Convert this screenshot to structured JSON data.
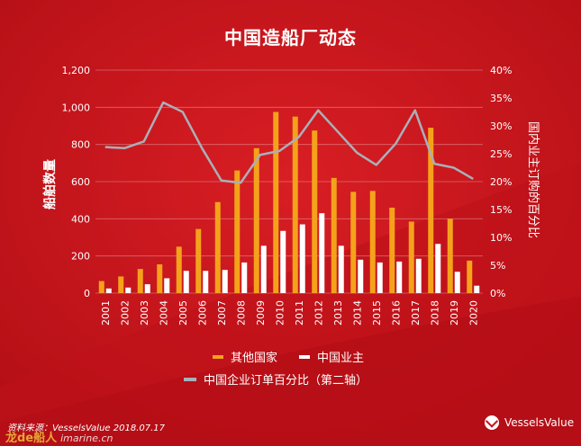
{
  "colors": {
    "background": "#c8141c",
    "bar_other": "#f5a21b",
    "bar_china": "#ffffff",
    "line": "#a9b0b8",
    "text": "#ffffff"
  },
  "chart_data": {
    "type": "bar",
    "title": "中国造船厂动态",
    "categories": [
      "2001",
      "2002",
      "2003",
      "2004",
      "2005",
      "2006",
      "2007",
      "2008",
      "2009",
      "2010",
      "2011",
      "2012",
      "2013",
      "2014",
      "2015",
      "2016",
      "2017",
      "2018",
      "2019",
      "2020"
    ],
    "ylabel": "船舶数量",
    "y2label": "国内业主订购的百分比",
    "ylim": [
      0,
      1200
    ],
    "y2lim": [
      0,
      40
    ],
    "yticks": [
      "0",
      "200",
      "400",
      "600",
      "800",
      "1,000",
      "1,200"
    ],
    "y2ticks": [
      "0%",
      "5%",
      "10%",
      "15%",
      "20%",
      "25%",
      "30%",
      "35%",
      "40%"
    ],
    "grid": true,
    "legend_position": "bottom",
    "series": [
      {
        "name": "其他国家",
        "type": "bar",
        "axis": "left",
        "values": [
          65,
          90,
          130,
          155,
          250,
          345,
          490,
          660,
          780,
          975,
          950,
          875,
          620,
          545,
          550,
          460,
          385,
          890,
          400,
          175
        ]
      },
      {
        "name": "中国业主",
        "type": "bar",
        "axis": "left",
        "values": [
          25,
          30,
          48,
          80,
          120,
          120,
          125,
          165,
          255,
          335,
          370,
          430,
          255,
          180,
          165,
          170,
          185,
          265,
          115,
          40
        ]
      },
      {
        "name": "中国企业订单百分比（第二轴）",
        "type": "line",
        "axis": "right",
        "values": [
          26.2,
          26.0,
          27.2,
          34.2,
          32.5,
          26.0,
          20.2,
          19.8,
          24.8,
          25.5,
          28.0,
          32.8,
          29.0,
          25.2,
          23.0,
          26.8,
          32.8,
          23.2,
          22.5,
          20.5
        ]
      }
    ]
  },
  "legend": {
    "item1": "其他国家",
    "item2": "中国业主",
    "item3": "中国企业订单百分比（第二轴）"
  },
  "footer": {
    "source": "资料来源：VesselsValue 2018.07.17",
    "brand": "VesselsValue",
    "watermark_cn": "龙de船人",
    "watermark_en": "imarine.cn"
  }
}
